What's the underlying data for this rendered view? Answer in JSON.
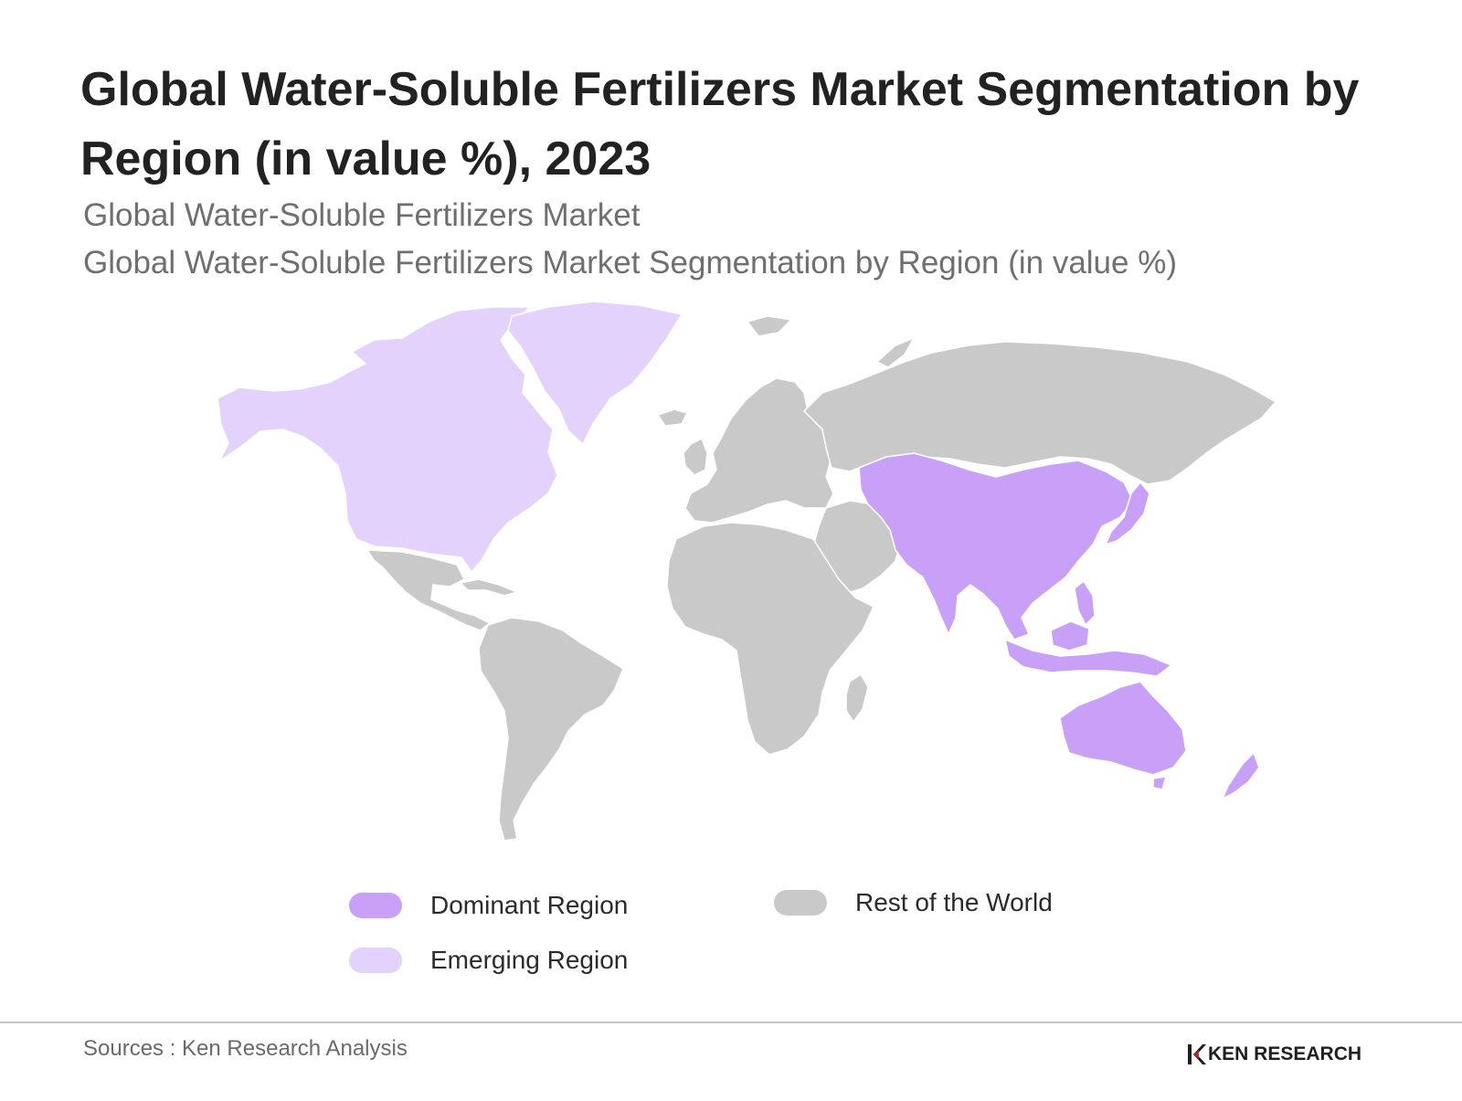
{
  "header": {
    "title": "Global Water-Soluble Fertilizers Market Segmentation by Region (in value %), 2023",
    "subtitle_1": "Global Water-Soluble Fertilizers Market",
    "subtitle_2": "Global Water-Soluble Fertilizers Market Segmentation by Region (in value %)"
  },
  "map": {
    "regions": [
      {
        "name": "North America",
        "category": "emerging"
      },
      {
        "name": "Greenland",
        "category": "emerging"
      },
      {
        "name": "Asia-Pacific",
        "category": "dominant"
      },
      {
        "name": "Australia",
        "category": "dominant"
      },
      {
        "name": "New Zealand",
        "category": "dominant"
      },
      {
        "name": "Latin America",
        "category": "rest"
      },
      {
        "name": "Europe",
        "category": "rest"
      },
      {
        "name": "Russia",
        "category": "rest"
      },
      {
        "name": "Middle East",
        "category": "rest"
      },
      {
        "name": "Africa",
        "category": "rest"
      }
    ],
    "colors": {
      "dominant": "#c9a0f7",
      "emerging": "#e3d2fb",
      "rest": "#c9c9c9",
      "border": "#ffffff"
    }
  },
  "legend": {
    "dominant": {
      "label": "Dominant Region",
      "color": "#c9a0f7"
    },
    "rest": {
      "label": "Rest of the World",
      "color": "#c9c9c9"
    },
    "emerging": {
      "label": "Emerging Region",
      "color": "#e3d2fb"
    }
  },
  "footer": {
    "source": "Sources : Ken Research Analysis",
    "logo_text": "KEN RESEARCH"
  }
}
